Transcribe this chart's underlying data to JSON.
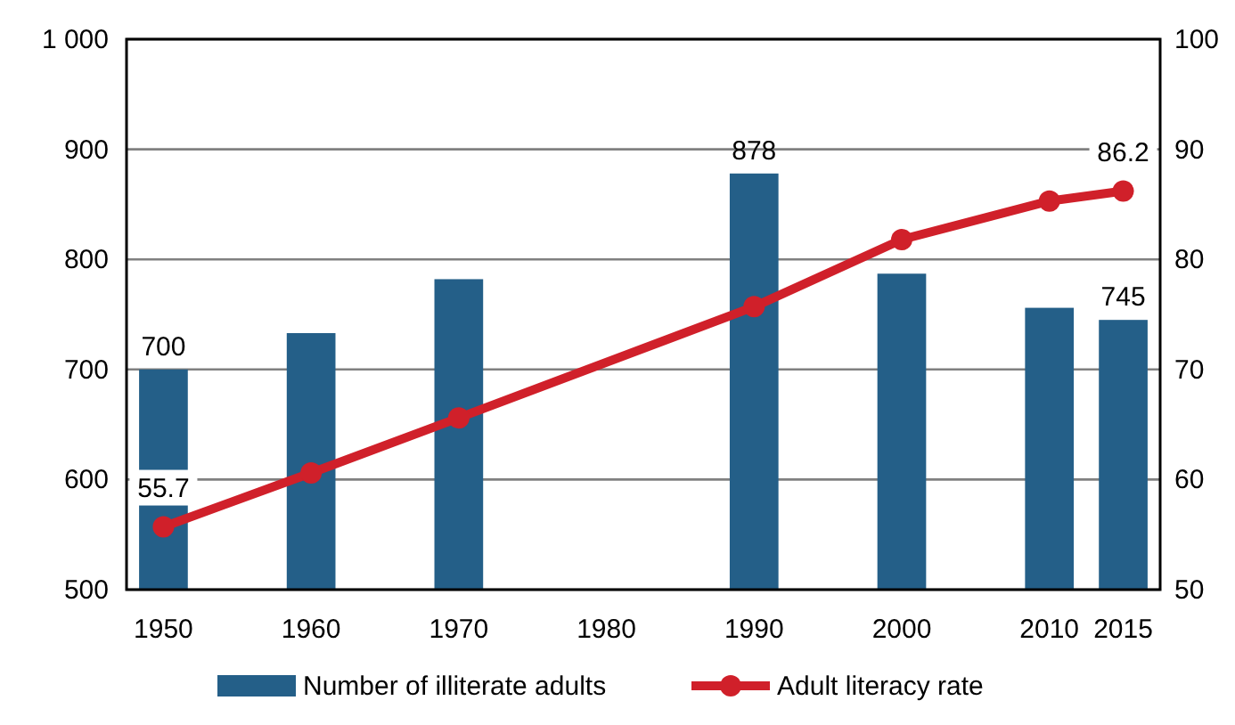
{
  "chart_data": {
    "type": "bar",
    "x": [
      1950,
      1960,
      1970,
      1990,
      2000,
      2010,
      2015
    ],
    "xlim": [
      1947.5,
      2017.5
    ],
    "xticks": [
      1950,
      1960,
      1970,
      1980,
      1990,
      2000,
      2010,
      2015
    ],
    "ylim": [
      500,
      1000
    ],
    "yticks": [
      500,
      600,
      700,
      800,
      900,
      {
        "value": 1000,
        "label": "1 000"
      }
    ],
    "y2lim": [
      50,
      100
    ],
    "y2ticks": [
      50,
      60,
      70,
      80,
      90,
      100
    ],
    "grid": "y",
    "legend": "bottom",
    "series": [
      {
        "name": "Number of illiterate adults",
        "color": "#245f88",
        "values": [
          700,
          733,
          782,
          878,
          787,
          756,
          745
        ],
        "value_labels": [
          "700",
          null,
          null,
          "878",
          null,
          null,
          "745"
        ]
      },
      {
        "name": "Adult literacy rate",
        "type": "line",
        "axis": "y2",
        "color": "#d0202a",
        "marker": "circle",
        "values": [
          55.7,
          60.6,
          65.6,
          75.7,
          81.8,
          85.3,
          86.2
        ],
        "value_labels": [
          "55.7",
          null,
          null,
          null,
          null,
          null,
          "86.2"
        ]
      }
    ]
  }
}
